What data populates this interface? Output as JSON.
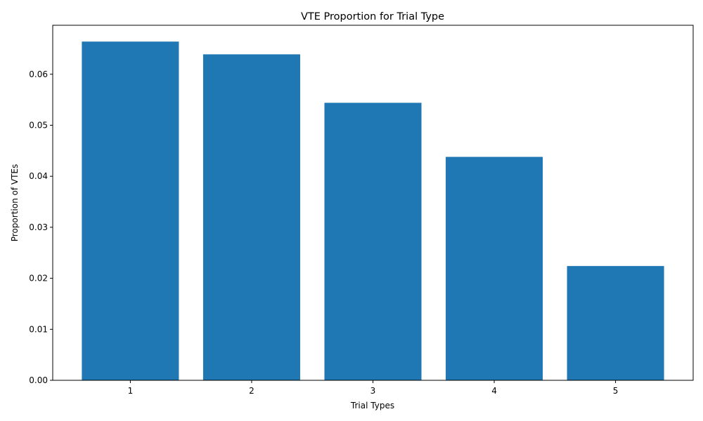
{
  "chart_data": {
    "type": "bar",
    "title": "VTE Proportion for Trial Type",
    "xlabel": "Trial Types",
    "ylabel": "Proportion of VTEs",
    "categories": [
      "1",
      "2",
      "3",
      "4",
      "5"
    ],
    "values": [
      0.0664,
      0.0639,
      0.0544,
      0.0438,
      0.0224
    ],
    "ylim": [
      0,
      0.0696
    ],
    "yticks": [
      "0.00",
      "0.01",
      "0.02",
      "0.03",
      "0.04",
      "0.05",
      "0.06"
    ],
    "grid": false,
    "bar_color": "#1f77b4"
  }
}
